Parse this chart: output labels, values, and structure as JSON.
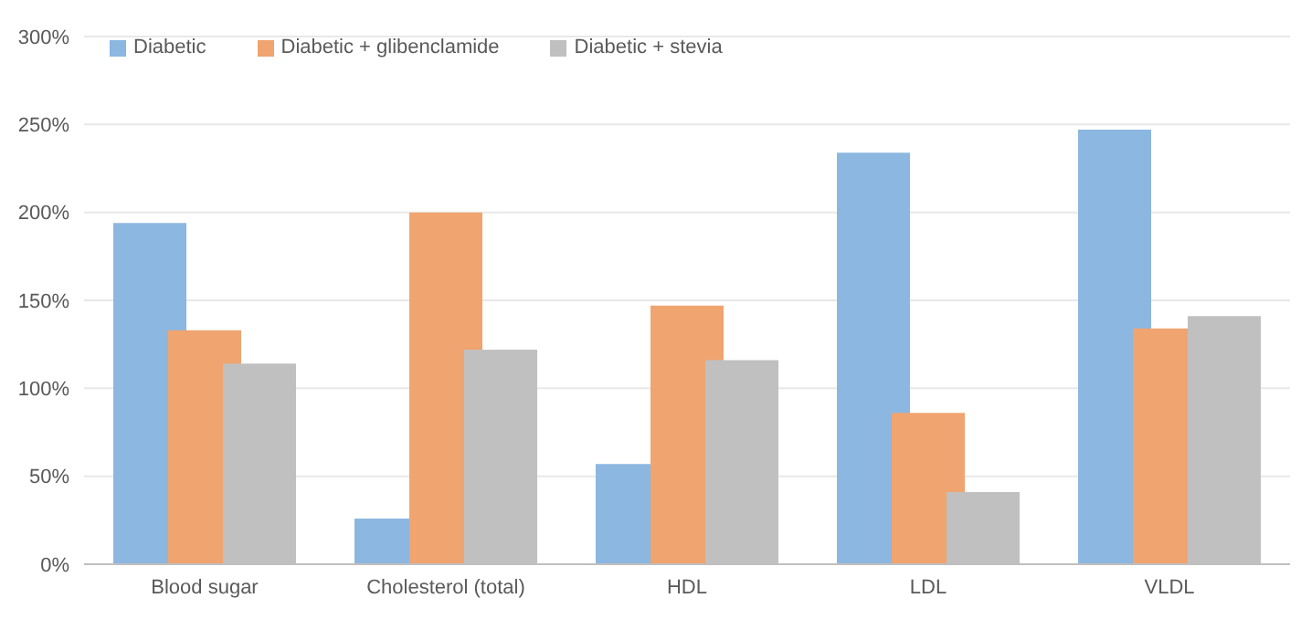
{
  "chart_data": {
    "type": "bar",
    "categories": [
      "Blood sugar",
      "Cholesterol (total)",
      "HDL",
      "LDL",
      "VLDL"
    ],
    "series": [
      {
        "name": "Diabetic",
        "color": "#8cb7e0",
        "values": [
          194,
          26,
          57,
          234,
          247
        ]
      },
      {
        "name": "Diabetic + glibenclamide",
        "color": "#f0a46f",
        "values": [
          133,
          200,
          147,
          86,
          134
        ]
      },
      {
        "name": "Diabetic + stevia",
        "color": "#c0c0c0",
        "values": [
          114,
          122,
          116,
          41,
          141
        ]
      }
    ],
    "ylim": [
      0,
      300
    ],
    "yticks": [
      {
        "value": 0,
        "label": "0%"
      },
      {
        "value": 50,
        "label": "50%"
      },
      {
        "value": 100,
        "label": "100%"
      },
      {
        "value": 150,
        "label": "150%"
      },
      {
        "value": 200,
        "label": "200%"
      },
      {
        "value": 250,
        "label": "250%"
      },
      {
        "value": 300,
        "label": "300%"
      }
    ],
    "grid": "y",
    "legend": "top left"
  }
}
